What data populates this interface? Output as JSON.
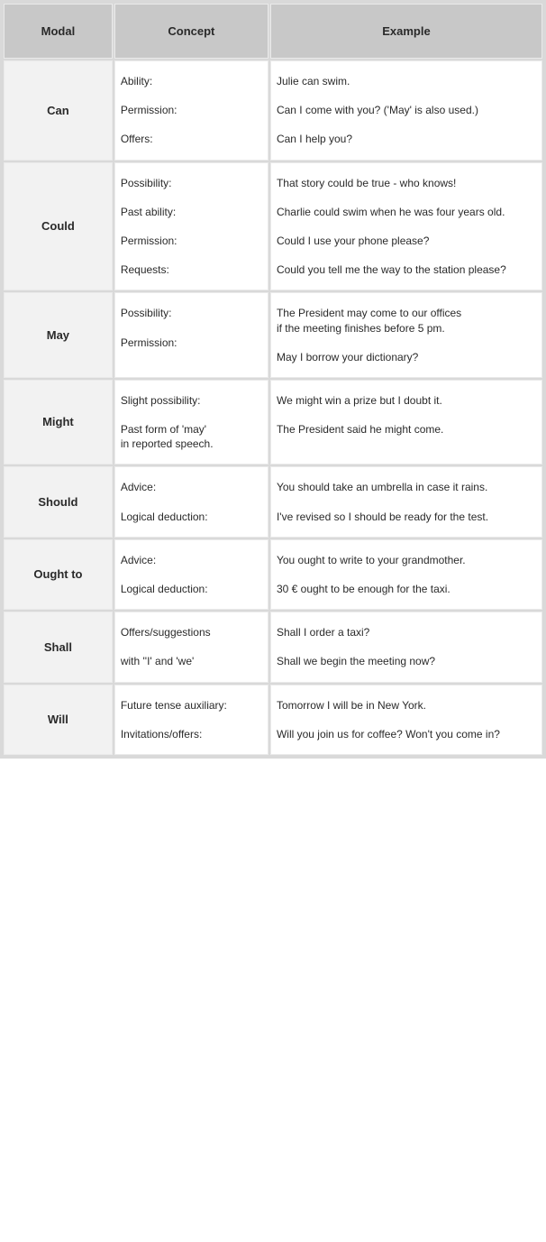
{
  "header": {
    "modal": "Modal",
    "concept": "Concept",
    "example": "Example"
  },
  "rows": [
    {
      "modal": "Can",
      "concepts": [
        "Ability:",
        "Permission:",
        "Offers:"
      ],
      "examples": [
        "Julie can swim.",
        "Can I come with you? ('May' is also used.)",
        "Can I help you?"
      ]
    },
    {
      "modal": "Could",
      "concepts": [
        "Possibility:",
        "Past ability:",
        "Permission:",
        "Requests:"
      ],
      "examples": [
        "That story could be true - who knows!",
        "Charlie could swim when he was four years old.",
        "Could I use your phone please?",
        "Could you tell me the way to the station please?"
      ]
    },
    {
      "modal": "May",
      "concepts": [
        "Possibility:",
        "Permission:"
      ],
      "examples": [
        "The President may come to our offices\nif the meeting finishes before 5 pm.",
        "May I borrow your dictionary?"
      ]
    },
    {
      "modal": "Might",
      "concepts": [
        "Slight possibility:",
        "Past form of 'may'\nin reported speech."
      ],
      "examples": [
        "We might win a prize but I doubt it.",
        "The President said he might come."
      ]
    },
    {
      "modal": "Should",
      "concepts": [
        "Advice:",
        "Logical deduction:"
      ],
      "examples": [
        "You should take an umbrella in case it rains.",
        "I've revised so I should be ready for the test."
      ]
    },
    {
      "modal": "Ought to",
      "concepts": [
        "Advice:",
        "Logical deduction:"
      ],
      "examples": [
        "You ought to write to your grandmother.",
        "30 € ought to be enough for the taxi."
      ]
    },
    {
      "modal": "Shall",
      "concepts": [
        "Offers/suggestions",
        "with ''I' and 'we'"
      ],
      "examples": [
        "Shall I order a taxi?",
        "Shall we begin the meeting now?"
      ]
    },
    {
      "modal": "Will",
      "concepts": [
        "Future tense auxiliary:",
        "Invitations/offers:"
      ],
      "examples": [
        "Tomorrow I will be in New York.",
        "Will you join us for coffee? Won't you come in?"
      ]
    }
  ]
}
